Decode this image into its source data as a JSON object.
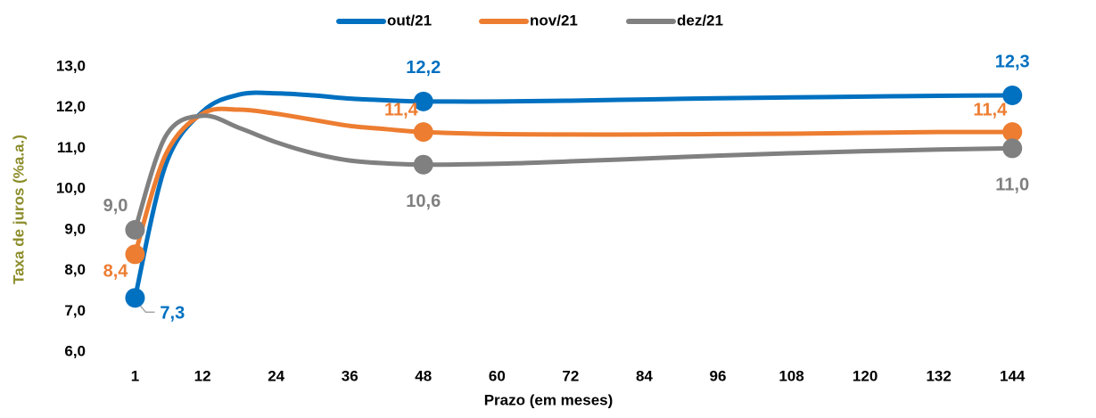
{
  "chart_data": {
    "type": "line",
    "xlabel": "Prazo (em meses)",
    "ylabel": "Taxa de juros (%a.a.)",
    "x": [
      1,
      6,
      12,
      18,
      24,
      30,
      36,
      42,
      48,
      60,
      72,
      84,
      96,
      108,
      120,
      132,
      144
    ],
    "series": [
      {
        "name": "out/21",
        "color": "#0070c0",
        "values": [
          7.33,
          10.6,
          11.9,
          12.32,
          12.35,
          12.3,
          12.22,
          12.18,
          12.15,
          12.15,
          12.17,
          12.2,
          12.23,
          12.25,
          12.27,
          12.29,
          12.3
        ],
        "value_labels": [
          "7,3",
          null,
          null,
          null,
          null,
          null,
          null,
          null,
          "12,2",
          null,
          null,
          null,
          null,
          null,
          null,
          null,
          "12,3"
        ]
      },
      {
        "name": "nov/21",
        "color": "#ed7d31",
        "values": [
          8.4,
          10.85,
          11.85,
          11.95,
          11.85,
          11.7,
          11.55,
          11.47,
          11.4,
          11.35,
          11.34,
          11.34,
          11.35,
          11.36,
          11.38,
          11.4,
          11.4
        ],
        "value_labels": [
          "8,4",
          null,
          null,
          null,
          null,
          null,
          null,
          null,
          "11,4",
          null,
          null,
          null,
          null,
          null,
          null,
          null,
          "11,4"
        ]
      },
      {
        "name": "dez/21",
        "color": "#808080",
        "values": [
          9.0,
          11.3,
          11.8,
          11.5,
          11.15,
          10.88,
          10.7,
          10.63,
          10.6,
          10.62,
          10.68,
          10.75,
          10.82,
          10.88,
          10.93,
          10.97,
          11.0
        ],
        "value_labels": [
          "9,0",
          null,
          null,
          null,
          null,
          null,
          null,
          null,
          "10,6",
          null,
          null,
          null,
          null,
          null,
          null,
          null,
          "11,0"
        ]
      }
    ],
    "xlim": [
      -12,
      154
    ],
    "xticks": [
      1,
      12,
      24,
      36,
      48,
      60,
      72,
      84,
      96,
      108,
      120,
      132,
      144
    ],
    "ylim": [
      6,
      13
    ],
    "yticks": [
      {
        "value": 6,
        "label": "6,0"
      },
      {
        "value": 7,
        "label": "7,0"
      },
      {
        "value": 8,
        "label": "8,0"
      },
      {
        "value": 9,
        "label": "9,0"
      },
      {
        "value": 10,
        "label": "10,0"
      },
      {
        "value": 11,
        "label": "11,0"
      },
      {
        "value": 12,
        "label": "12,0"
      },
      {
        "value": 13,
        "label": "13,0"
      }
    ],
    "legend": "top",
    "grid": false
  }
}
